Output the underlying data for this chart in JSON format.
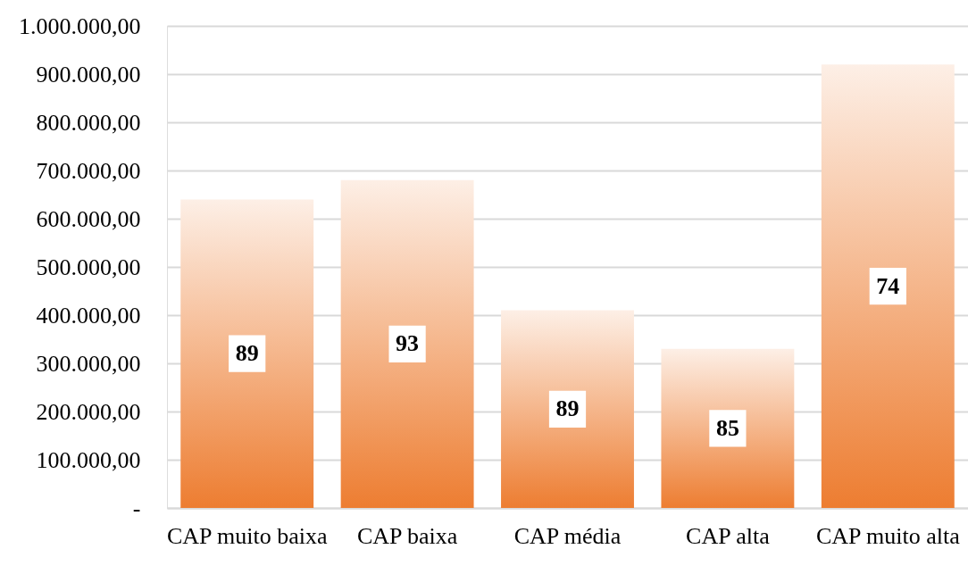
{
  "chart_data": {
    "type": "bar",
    "categories": [
      "CAP muito baixa",
      "CAP baixa",
      "CAP média",
      "CAP alta",
      "CAP muito alta"
    ],
    "values": [
      640000,
      680000,
      410000,
      330000,
      920000
    ],
    "color": "#ed7d31",
    "annotations": [
      {
        "text": "89",
        "x": "CAP muito baixa",
        "y": 320000
      },
      {
        "text": "93",
        "x": "CAP baixa",
        "y": 340000
      },
      {
        "text": "89",
        "x": "CAP média",
        "y": 205000
      },
      {
        "text": "85",
        "x": "CAP alta",
        "y": 165000
      },
      {
        "text": "74",
        "x": "CAP muito alta",
        "y": 460000
      }
    ],
    "ylim": [
      0,
      1000000
    ],
    "yticks": [
      {
        "value": 0,
        "label": "-"
      },
      {
        "value": 100000,
        "label": "100.000,00"
      },
      {
        "value": 200000,
        "label": "200.000,00"
      },
      {
        "value": 300000,
        "label": "300.000,00"
      },
      {
        "value": 400000,
        "label": "400.000,00"
      },
      {
        "value": 500000,
        "label": "500.000,00"
      },
      {
        "value": 600000,
        "label": "600.000,00"
      },
      {
        "value": 700000,
        "label": "700.000,00"
      },
      {
        "value": 800000,
        "label": "800.000,00"
      },
      {
        "value": 900000,
        "label": "900.000,00"
      },
      {
        "value": 1000000,
        "label": "1.000.000,00"
      }
    ],
    "grid": "y"
  }
}
